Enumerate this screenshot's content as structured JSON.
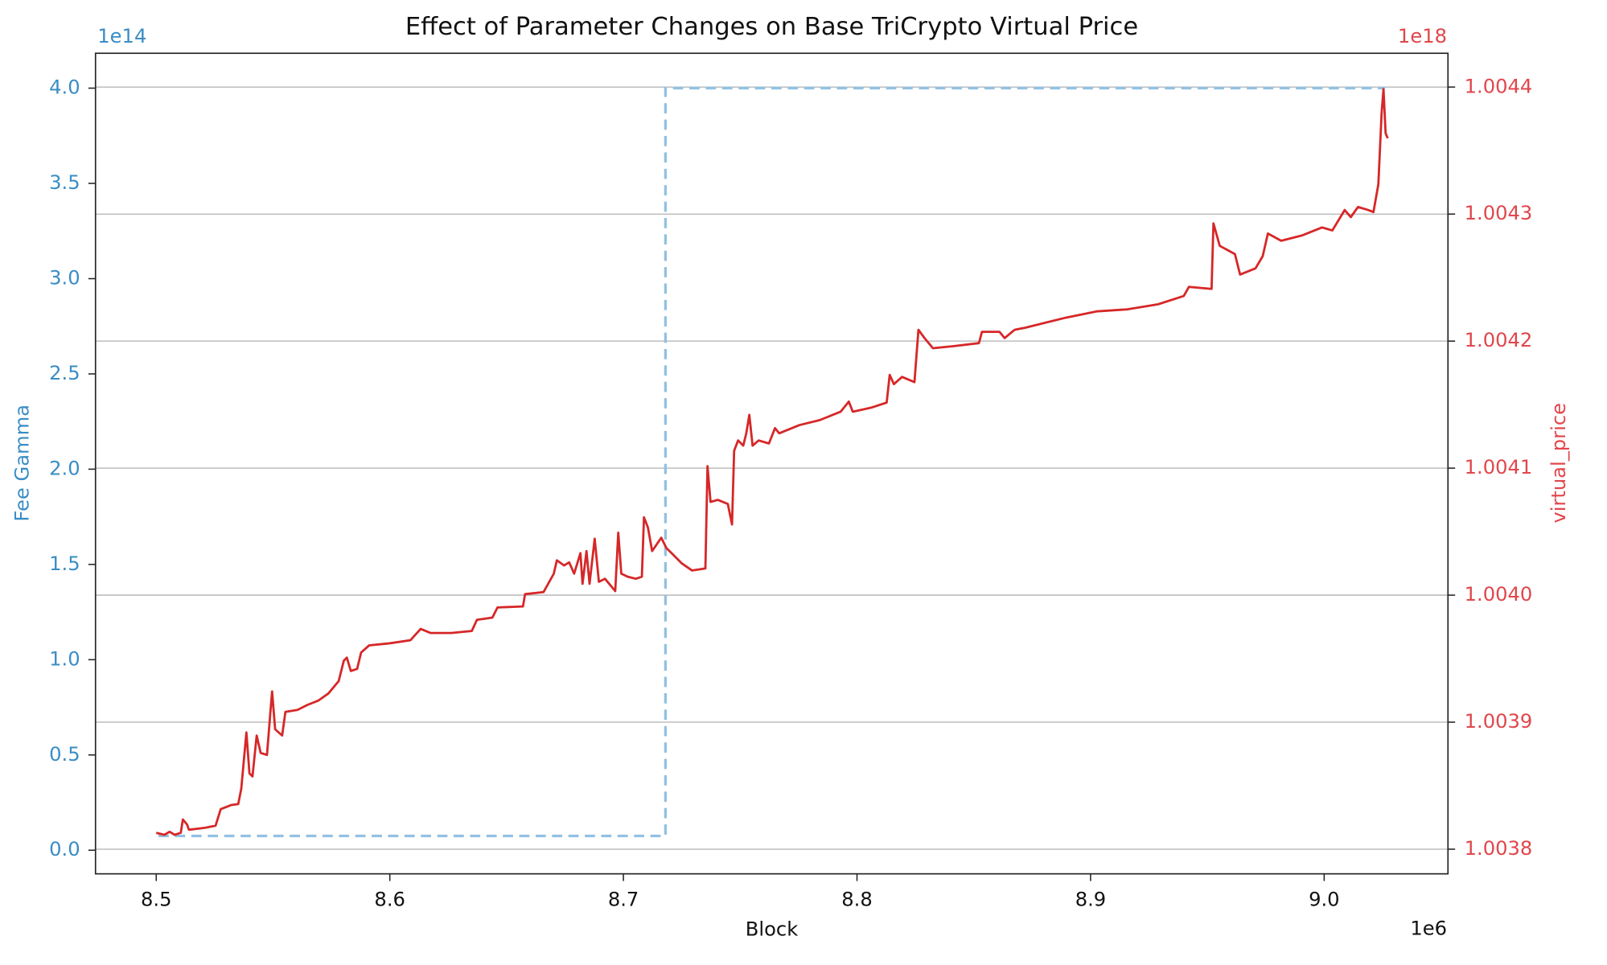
{
  "chart_data": {
    "type": "line",
    "title": "Effect of Parameter Changes on Base TriCrypto Virtual Price",
    "xlabel": "Block",
    "ylabel": "Fee Gamma",
    "y2label": "virtual_price",
    "x_offset_label": "1e6",
    "y_offset_label": "1e14",
    "y2_offset_label": "1e18",
    "xlim": [
      8.474,
      9.053
    ],
    "xticks": [
      8.5,
      8.6,
      8.7,
      8.8,
      8.9,
      {
        "value": 9.0,
        "label": "9.0"
      }
    ],
    "ylim": [
      -0.124,
      4.183
    ],
    "yticks": [
      {
        "value": 0,
        "label": "0.0"
      },
      0.5,
      {
        "value": 1,
        "label": "1.0"
      },
      1.5,
      {
        "value": 2,
        "label": "2.0"
      },
      2.5,
      {
        "value": 3,
        "label": "3.0"
      },
      3.5,
      {
        "value": 4,
        "label": "4.0"
      }
    ],
    "y2lim": [
      1.0037806,
      1.0044266
    ],
    "y2ticks": [
      1.0038,
      1.0039,
      {
        "value": 1.004,
        "label": "1.0040"
      },
      1.0041,
      1.0042,
      1.0043,
      1.0044
    ],
    "grid": "y2",
    "y_axis_color": "#3a8dc5",
    "y2_axis_color": "#e0474c",
    "series": [
      {
        "color": "#92c1e2",
        "dashed": true,
        "axis": "y",
        "x": [
          8.501,
          8.718,
          8.718,
          9.026
        ],
        "values": [
          0.075,
          0.075,
          4.0,
          4.0
        ]
      },
      {
        "color": "#d62728",
        "dashed": false,
        "axis": "y2",
        "x": [
          8.5,
          8.5035,
          8.5057,
          8.5079,
          8.5105,
          8.5114,
          8.5132,
          8.514,
          8.5211,
          8.5254,
          8.5276,
          8.532,
          8.5351,
          8.5364,
          8.5386,
          8.5399,
          8.5412,
          8.543,
          8.5447,
          8.5474,
          8.5487,
          8.5496,
          8.5509,
          8.5539,
          8.5553,
          8.5605,
          8.5649,
          8.5693,
          8.5737,
          8.5781,
          8.5803,
          8.5816,
          8.5833,
          8.586,
          8.5877,
          8.5912,
          8.6,
          8.6088,
          8.6132,
          8.6175,
          8.6263,
          8.6351,
          8.6373,
          8.6439,
          8.6461,
          8.657,
          8.6579,
          8.6658,
          8.6702,
          8.6715,
          8.6746,
          8.6768,
          8.6789,
          8.6816,
          8.6825,
          8.6842,
          8.6855,
          8.6877,
          8.6895,
          8.6921,
          8.6965,
          8.6978,
          8.6991,
          8.7018,
          8.7053,
          8.7079,
          8.7088,
          8.7105,
          8.7123,
          8.7162,
          8.7184,
          8.7206,
          8.725,
          8.7294,
          8.7351,
          8.736,
          8.7373,
          8.7404,
          8.7447,
          8.7465,
          8.7474,
          8.7491,
          8.7513,
          8.7526,
          8.7539,
          8.7553,
          8.7579,
          8.7623,
          8.7649,
          8.7667,
          8.7754,
          8.7842,
          8.793,
          8.7965,
          8.7982,
          8.8061,
          8.8127,
          8.814,
          8.8158,
          8.8193,
          8.8246,
          8.8263,
          8.8289,
          8.8325,
          8.8412,
          8.8522,
          8.8535,
          8.861,
          8.8632,
          8.8675,
          8.8719,
          8.8807,
          8.8895,
          8.9026,
          8.9158,
          8.9289,
          8.9399,
          8.9421,
          8.9518,
          8.9526,
          8.9553,
          8.9618,
          8.964,
          8.9706,
          8.9737,
          8.9759,
          8.9816,
          8.9904,
          8.9991,
          9.0035,
          9.0088,
          9.0114,
          9.0145,
          9.0189,
          9.0211,
          9.0232,
          9.0246,
          9.0254,
          9.0263,
          9.0272
        ],
        "values": [
          1.0038129,
          1.0038113,
          1.0038137,
          1.0038113,
          1.0038129,
          1.0038234,
          1.0038194,
          1.0038153,
          1.0038169,
          1.0038185,
          1.0038315,
          1.0038347,
          1.0038355,
          1.0038476,
          1.0038919,
          1.0038597,
          1.0038573,
          1.0038895,
          1.0038758,
          1.0038742,
          1.003904,
          1.0039242,
          1.0038944,
          1.0038895,
          1.0039081,
          1.0039097,
          1.0039137,
          1.0039169,
          1.0039226,
          1.0039323,
          1.0039484,
          1.0039508,
          1.0039403,
          1.0039419,
          1.0039548,
          1.0039605,
          1.0039621,
          1.0039645,
          1.0039734,
          1.0039702,
          1.0039702,
          1.0039718,
          1.0039806,
          1.0039823,
          1.0039903,
          1.0039911,
          1.0040008,
          1.0040024,
          1.0040169,
          1.0040274,
          1.0040234,
          1.0040258,
          1.0040169,
          1.0040331,
          1.0040089,
          1.0040347,
          1.0040089,
          1.0040444,
          1.0040105,
          1.0040129,
          1.0040032,
          1.0040492,
          1.0040169,
          1.0040145,
          1.0040129,
          1.0040145,
          1.0040613,
          1.0040532,
          1.0040347,
          1.0040452,
          1.0040371,
          1.0040331,
          1.004025,
          1.0040194,
          1.004021,
          1.0041016,
          1.0040734,
          1.004075,
          1.0040718,
          1.0040556,
          1.0041137,
          1.0041218,
          1.0041177,
          1.0041274,
          1.0041419,
          1.0041177,
          1.0041218,
          1.0041194,
          1.0041315,
          1.0041274,
          1.0041339,
          1.0041379,
          1.0041444,
          1.0041524,
          1.0041444,
          1.0041476,
          1.0041516,
          1.0041734,
          1.0041661,
          1.0041718,
          1.0041677,
          1.0042089,
          1.0042024,
          1.0041944,
          1.004196,
          1.0041984,
          1.0042073,
          1.0042073,
          1.0042024,
          1.0042089,
          1.0042105,
          1.0042145,
          1.0042185,
          1.0042234,
          1.004225,
          1.004229,
          1.0042355,
          1.0042427,
          1.0042411,
          1.0042927,
          1.004275,
          1.0042685,
          1.0042524,
          1.0042573,
          1.0042669,
          1.0042847,
          1.004279,
          1.0042831,
          1.0042895,
          1.0042871,
          1.0043032,
          1.0042976,
          1.0043056,
          1.0043032,
          1.0043016,
          1.0043234,
          1.0043798,
          1.0043984,
          1.0043637,
          1.0043597
        ]
      }
    ]
  }
}
